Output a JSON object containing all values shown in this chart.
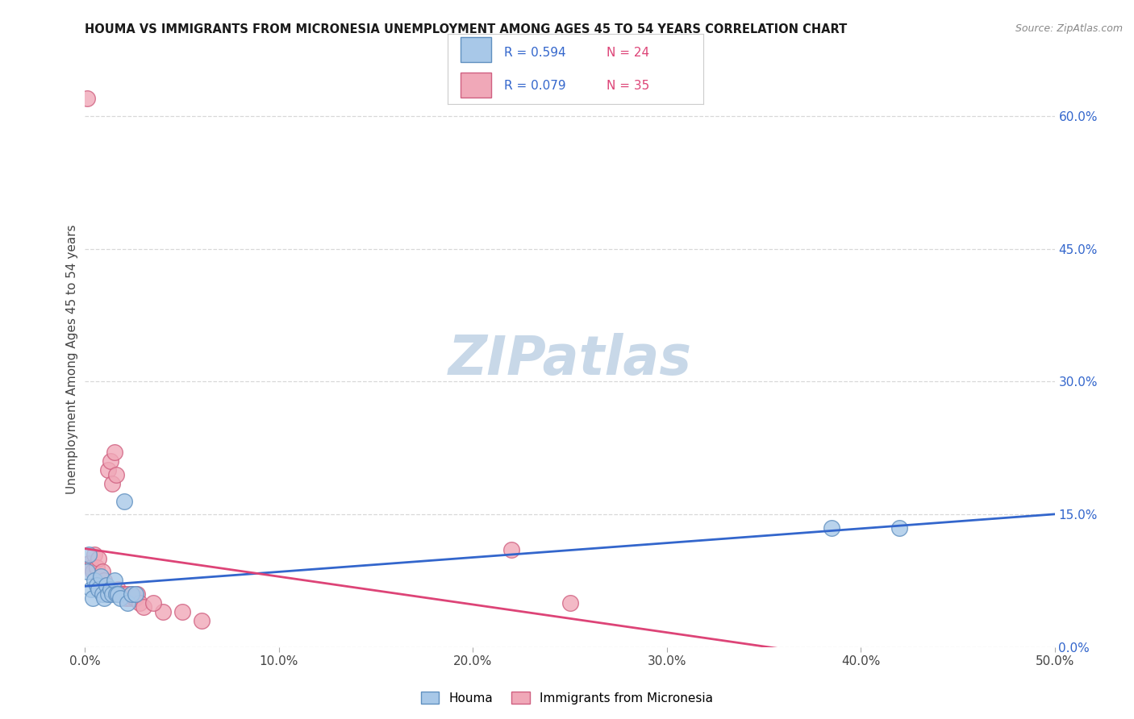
{
  "title": "HOUMA VS IMMIGRANTS FROM MICRONESIA UNEMPLOYMENT AMONG AGES 45 TO 54 YEARS CORRELATION CHART",
  "source": "Source: ZipAtlas.com",
  "ylabel": "Unemployment Among Ages 45 to 54 years",
  "xlim": [
    0.0,
    0.5
  ],
  "ylim": [
    0.0,
    0.65
  ],
  "xticks": [
    0.0,
    0.1,
    0.2,
    0.3,
    0.4,
    0.5
  ],
  "yticks_right": [
    0.0,
    0.15,
    0.3,
    0.45,
    0.6
  ],
  "ytick_right_labels": [
    "0.0%",
    "15.0%",
    "30.0%",
    "45.0%",
    "60.0%"
  ],
  "xtick_labels": [
    "0.0%",
    "10.0%",
    "20.0%",
    "30.0%",
    "40.0%",
    "50.0%"
  ],
  "grid_color": "#d8d8d8",
  "background_color": "#ffffff",
  "watermark": "ZIPatlas",
  "watermark_color": "#c8d8e8",
  "houma_color": "#a8c8e8",
  "houma_edge_color": "#6090c0",
  "micronesia_color": "#f0a8b8",
  "micronesia_edge_color": "#d06080",
  "houma_R": 0.594,
  "houma_N": 24,
  "micronesia_R": 0.079,
  "micronesia_N": 35,
  "houma_line_color": "#3366cc",
  "micronesia_line_color": "#dd4477",
  "legend_R_color": "#3366cc",
  "legend_N_color": "#dd4477",
  "houma_scatter": [
    [
      0.001,
      0.085
    ],
    [
      0.002,
      0.105
    ],
    [
      0.003,
      0.065
    ],
    [
      0.004,
      0.055
    ],
    [
      0.005,
      0.075
    ],
    [
      0.006,
      0.07
    ],
    [
      0.007,
      0.065
    ],
    [
      0.008,
      0.08
    ],
    [
      0.009,
      0.06
    ],
    [
      0.01,
      0.055
    ],
    [
      0.011,
      0.07
    ],
    [
      0.012,
      0.06
    ],
    [
      0.013,
      0.065
    ],
    [
      0.014,
      0.06
    ],
    [
      0.015,
      0.075
    ],
    [
      0.016,
      0.06
    ],
    [
      0.017,
      0.06
    ],
    [
      0.018,
      0.055
    ],
    [
      0.02,
      0.165
    ],
    [
      0.022,
      0.05
    ],
    [
      0.024,
      0.06
    ],
    [
      0.026,
      0.06
    ],
    [
      0.385,
      0.135
    ],
    [
      0.42,
      0.135
    ]
  ],
  "micronesia_scatter": [
    [
      0.001,
      0.62
    ],
    [
      0.002,
      0.095
    ],
    [
      0.003,
      0.09
    ],
    [
      0.004,
      0.085
    ],
    [
      0.005,
      0.105
    ],
    [
      0.006,
      0.09
    ],
    [
      0.007,
      0.1
    ],
    [
      0.008,
      0.07
    ],
    [
      0.009,
      0.085
    ],
    [
      0.01,
      0.075
    ],
    [
      0.011,
      0.065
    ],
    [
      0.012,
      0.2
    ],
    [
      0.013,
      0.21
    ],
    [
      0.014,
      0.185
    ],
    [
      0.015,
      0.22
    ],
    [
      0.016,
      0.195
    ],
    [
      0.017,
      0.065
    ],
    [
      0.018,
      0.06
    ],
    [
      0.019,
      0.06
    ],
    [
      0.02,
      0.06
    ],
    [
      0.021,
      0.055
    ],
    [
      0.022,
      0.06
    ],
    [
      0.023,
      0.055
    ],
    [
      0.024,
      0.06
    ],
    [
      0.025,
      0.055
    ],
    [
      0.026,
      0.055
    ],
    [
      0.027,
      0.06
    ],
    [
      0.028,
      0.05
    ],
    [
      0.04,
      0.04
    ],
    [
      0.05,
      0.04
    ],
    [
      0.06,
      0.03
    ],
    [
      0.22,
      0.11
    ],
    [
      0.25,
      0.05
    ],
    [
      0.03,
      0.045
    ],
    [
      0.035,
      0.05
    ]
  ]
}
